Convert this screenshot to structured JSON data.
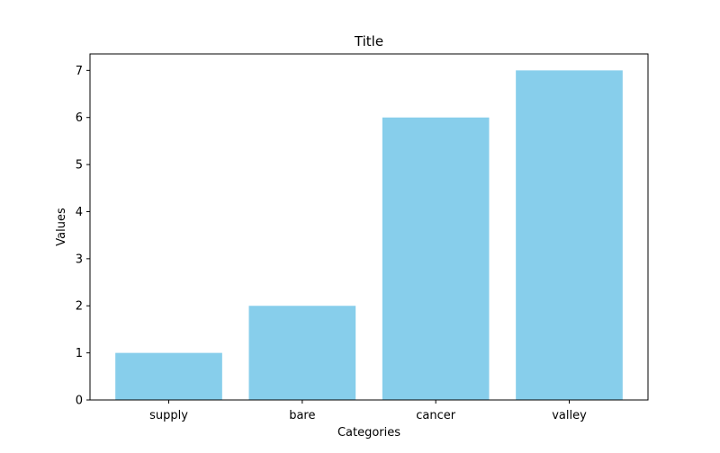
{
  "chart_data": {
    "type": "bar",
    "title": "Title",
    "xlabel": "Categories",
    "ylabel": "Values",
    "categories": [
      "supply",
      "bare",
      "cancer",
      "valley"
    ],
    "values": [
      1,
      2,
      6,
      7
    ],
    "ylim": [
      0,
      7.35
    ],
    "yticks": [
      0,
      1,
      2,
      3,
      4,
      5,
      6,
      7
    ],
    "bar_color": "#87ceeb",
    "grid": false,
    "legend": false
  }
}
